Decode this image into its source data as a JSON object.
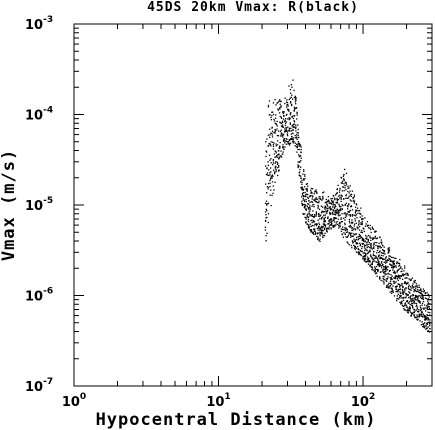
{
  "chart_data": {
    "type": "scatter",
    "title": "45DS 20km Vmax: R(black)",
    "xlabel": "Hypocentral Distance (km)",
    "ylabel": "Vmax (m/s)",
    "x_scale": "log",
    "y_scale": "log",
    "xlim": [
      1,
      300
    ],
    "ylim": [
      1e-07,
      0.001
    ],
    "x_ticks": [
      {
        "value": 1,
        "base": "10",
        "exp": "0"
      },
      {
        "value": 10,
        "base": "10",
        "exp": "1"
      },
      {
        "value": 100,
        "base": "10",
        "exp": "2"
      }
    ],
    "y_ticks": [
      {
        "value": 1e-07,
        "base": "10",
        "exp": "-7"
      },
      {
        "value": 1e-06,
        "base": "10",
        "exp": "-6"
      },
      {
        "value": 1e-05,
        "base": "10",
        "exp": "-5"
      },
      {
        "value": 0.0001,
        "base": "10",
        "exp": "-4"
      },
      {
        "value": 0.001,
        "base": "10",
        "exp": "-3"
      }
    ],
    "grid": false,
    "series": [
      {
        "color": "#000000",
        "envelope": [
          {
            "x": 21,
            "lo": 3.3e-06,
            "hi": 9e-05
          },
          {
            "x": 22,
            "lo": 7e-06,
            "hi": 0.00015
          },
          {
            "x": 24,
            "lo": 1.4e-05,
            "hi": 0.00017
          },
          {
            "x": 26,
            "lo": 2.5e-05,
            "hi": 0.00016
          },
          {
            "x": 28,
            "lo": 4e-05,
            "hi": 0.00014
          },
          {
            "x": 30,
            "lo": 4.5e-05,
            "hi": 0.0002
          },
          {
            "x": 32,
            "lo": 5e-05,
            "hi": 0.00028
          },
          {
            "x": 34,
            "lo": 4e-05,
            "hi": 0.00016
          },
          {
            "x": 36,
            "lo": 2e-05,
            "hi": 6.5e-05
          },
          {
            "x": 38,
            "lo": 8e-06,
            "hi": 3e-05
          },
          {
            "x": 40,
            "lo": 6e-06,
            "hi": 1.8e-05
          },
          {
            "x": 45,
            "lo": 4.5e-06,
            "hi": 1.6e-05
          },
          {
            "x": 50,
            "lo": 4e-06,
            "hi": 1.5e-05
          },
          {
            "x": 55,
            "lo": 5e-06,
            "hi": 1.4e-05
          },
          {
            "x": 60,
            "lo": 5.5e-06,
            "hi": 1.3e-05
          },
          {
            "x": 65,
            "lo": 6e-06,
            "hi": 1.5e-05
          },
          {
            "x": 70,
            "lo": 5e-06,
            "hi": 2.2e-05
          },
          {
            "x": 75,
            "lo": 4e-06,
            "hi": 2.6e-05
          },
          {
            "x": 80,
            "lo": 3.5e-06,
            "hi": 1.7e-05
          },
          {
            "x": 90,
            "lo": 3e-06,
            "hi": 1.2e-05
          },
          {
            "x": 100,
            "lo": 2.5e-06,
            "hi": 8e-06
          },
          {
            "x": 120,
            "lo": 1.8e-06,
            "hi": 5.5e-06
          },
          {
            "x": 140,
            "lo": 1.3e-06,
            "hi": 4e-06
          },
          {
            "x": 160,
            "lo": 1e-06,
            "hi": 3e-06
          },
          {
            "x": 180,
            "lo": 8e-07,
            "hi": 2.5e-06
          },
          {
            "x": 200,
            "lo": 6.5e-07,
            "hi": 2e-06
          },
          {
            "x": 230,
            "lo": 5.5e-07,
            "hi": 1.5e-06
          },
          {
            "x": 260,
            "lo": 4.5e-07,
            "hi": 1.2e-06
          },
          {
            "x": 290,
            "lo": 3.8e-07,
            "hi": 1e-06
          }
        ]
      }
    ]
  }
}
